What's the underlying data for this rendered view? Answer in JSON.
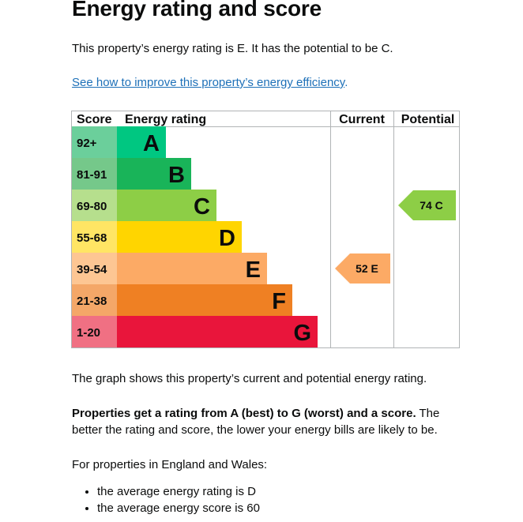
{
  "page": {
    "title": "Energy rating and score",
    "summary": "This property’s energy rating is E. It has the potential to be C.",
    "link_text": "See how to improve this property’s energy efficiency",
    "link_suffix": ".",
    "graph_caption": "The graph shows this property’s current and potential energy rating.",
    "explain_bold": "Properties get a rating from A (best) to G (worst) and a score.",
    "explain_rest": " The better the rating and score, the lower your energy bills are likely to be.",
    "region_intro": "For properties in England and Wales:",
    "bullets": [
      "the average energy rating is D",
      "the average energy score is 60"
    ]
  },
  "chart_data": {
    "type": "bar",
    "headers": {
      "score": "Score",
      "rating": "Energy rating",
      "current": "Current",
      "potential": "Potential"
    },
    "bands": [
      {
        "score": "92+",
        "letter": "A",
        "color": "#00c781",
        "score_bg": "#6bcf9b"
      },
      {
        "score": "81-91",
        "letter": "B",
        "color": "#19b459",
        "score_bg": "#75c88a"
      },
      {
        "score": "69-80",
        "letter": "C",
        "color": "#8dce46",
        "score_bg": "#b6df8d"
      },
      {
        "score": "55-68",
        "letter": "D",
        "color": "#ffd500",
        "score_bg": "#ffe564"
      },
      {
        "score": "39-54",
        "letter": "E",
        "color": "#fcaa65",
        "score_bg": "#fdc693"
      },
      {
        "score": "21-38",
        "letter": "F",
        "color": "#ef8023",
        "score_bg": "#f4a768"
      },
      {
        "score": "1-20",
        "letter": "G",
        "color": "#e9153b",
        "score_bg": "#f07083"
      }
    ],
    "current": {
      "score": 52,
      "letter": "E",
      "label": "52 E",
      "color": "#fcaa65"
    },
    "potential": {
      "score": 74,
      "letter": "C",
      "label": "74 C",
      "color": "#8dce46"
    }
  }
}
